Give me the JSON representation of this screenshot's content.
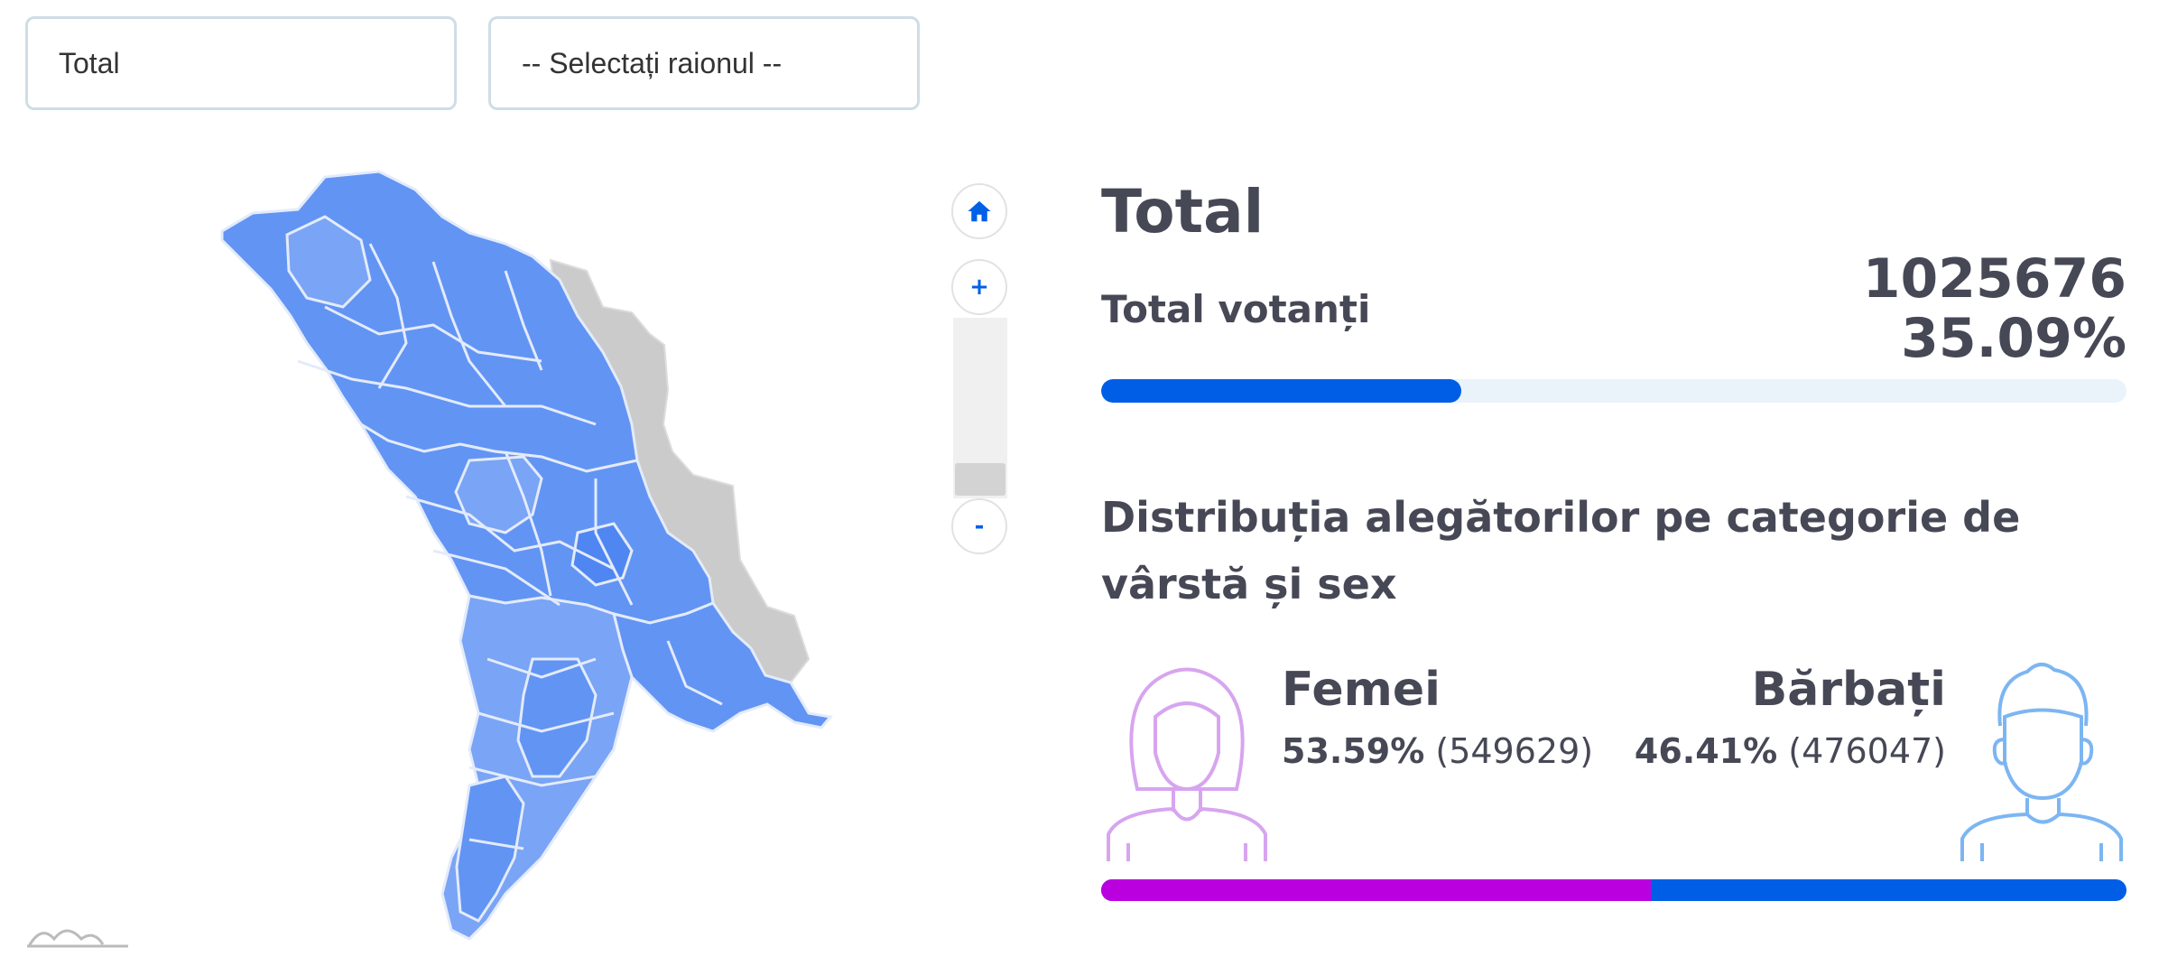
{
  "filters": {
    "region_type": "Total",
    "district_placeholder": "-- Selectați raionul --"
  },
  "map_controls": {
    "home_icon": "home-icon",
    "zoom_in": "+",
    "zoom_out": "-"
  },
  "summary": {
    "title": "Total",
    "voters_label": "Total votanți",
    "voters_count": "1025676",
    "voters_percent": "35.09%",
    "turnout_fraction": 0.3509
  },
  "distribution": {
    "title": "Distribuția alegătorilor pe categorie de vârstă și sex",
    "female": {
      "label": "Femei",
      "percent": "53.59%",
      "count": "(549629)",
      "fraction": 0.5359
    },
    "male": {
      "label": "Bărbați",
      "percent": "46.41%",
      "count": "(476047)",
      "fraction": 0.4641
    }
  },
  "colors": {
    "accent": "#005ee6",
    "female": "#bb00e0",
    "map_fill": "#6294f4",
    "transnistria": "#cbcbcb"
  }
}
